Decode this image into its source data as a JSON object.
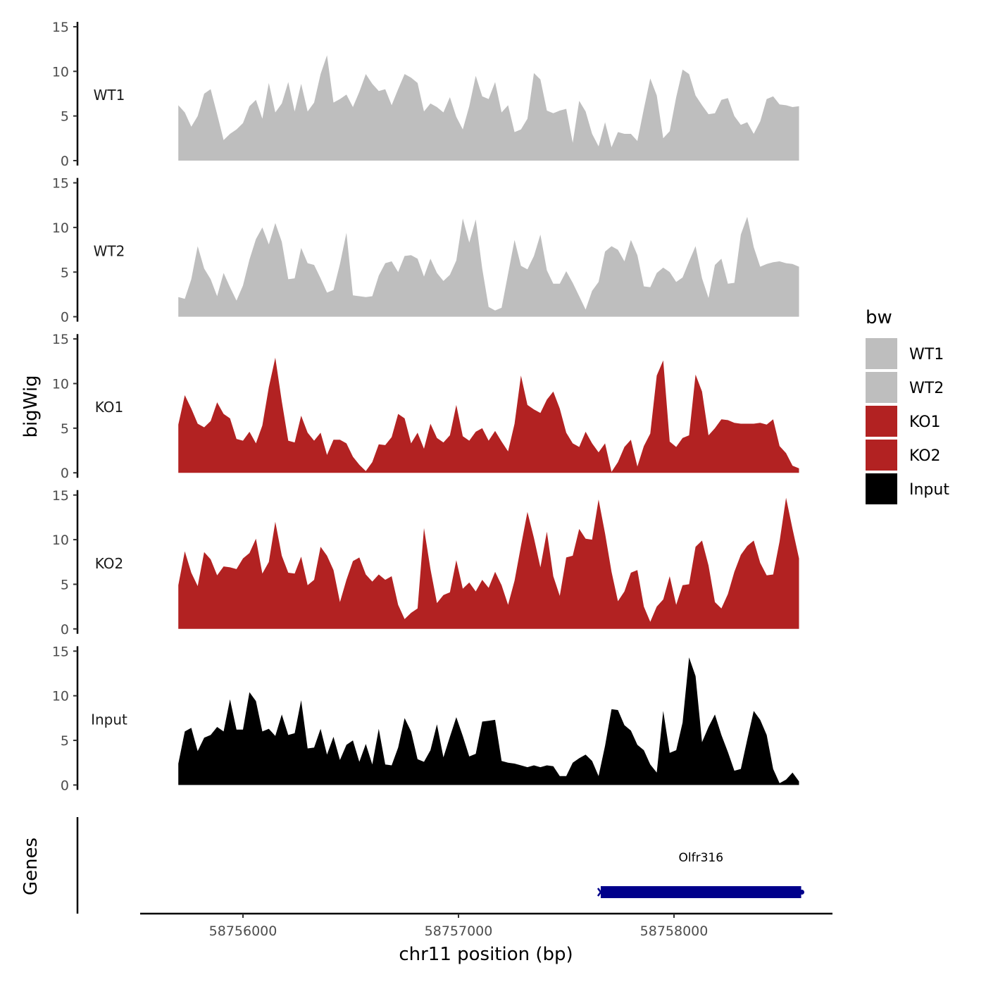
{
  "chart_data": {
    "type": "area",
    "y_axis_title": "bigWig",
    "x_axis_title": "chr11 position (bp)",
    "x_ticks": [
      58756000,
      58757000,
      58758000
    ],
    "x_range": [
      58755700,
      58758580
    ],
    "y_ticks": [
      0,
      5,
      10,
      15
    ],
    "ylim": [
      0,
      15
    ],
    "legend": {
      "title": "bw",
      "entries": [
        {
          "label": "WT1",
          "color": "#bebebe"
        },
        {
          "label": "WT2",
          "color": "#bebebe"
        },
        {
          "label": "KO1",
          "color": "#b22222"
        },
        {
          "label": "KO2",
          "color": "#b22222"
        },
        {
          "label": "Input",
          "color": "#000000"
        }
      ]
    },
    "tracks": [
      {
        "name": "WT1",
        "color": "#bebebe",
        "x": [
          58755700,
          58755730,
          58755760,
          58755790,
          58755820,
          58755850,
          58755880,
          58755910,
          58755940,
          58755970,
          58756000,
          58756030,
          58756060,
          58756090,
          58756120,
          58756150,
          58756180,
          58756210,
          58756240,
          58756270,
          58756300,
          58756330,
          58756360,
          58756390,
          58756420,
          58756450,
          58756480,
          58756510,
          58756540,
          58756570,
          58756600,
          58756630,
          58756660,
          58756690,
          58756720,
          58756750,
          58756780,
          58756810,
          58756840,
          58756870,
          58756900,
          58756930,
          58756960,
          58756990,
          58757020,
          58757050,
          58757080,
          58757110,
          58757140,
          58757170,
          58757200,
          58757230,
          58757260,
          58757290,
          58757320,
          58757350,
          58757380,
          58757410,
          58757440,
          58757470,
          58757500,
          58757530,
          58757560,
          58757590,
          58757620,
          58757650,
          58757680,
          58757710,
          58757740,
          58757770,
          58757800,
          58757830,
          58757860,
          58757890,
          58757920,
          58757950,
          58757980,
          58758010,
          58758040,
          58758070,
          58758100,
          58758130,
          58758160,
          58758190,
          58758220,
          58758250,
          58758280,
          58758310,
          58758340,
          58758370,
          58758400,
          58758430,
          58758460,
          58758490,
          58758520,
          58758550,
          58758580
        ],
        "values": [
          6.2,
          5.4,
          3.8,
          5.0,
          7.5,
          8.0,
          5.2,
          2.3,
          3.0,
          3.5,
          4.2,
          6.1,
          6.8,
          4.7,
          8.7,
          5.4,
          6.4,
          8.8,
          5.5,
          8.6,
          5.5,
          6.5,
          9.7,
          11.8,
          6.5,
          6.9,
          7.4,
          6.0,
          7.7,
          9.7,
          8.6,
          7.8,
          8.0,
          6.2,
          8.0,
          9.7,
          9.3,
          8.7,
          5.5,
          6.4,
          6.0,
          5.4,
          7.1,
          4.9,
          3.5,
          6.1,
          9.5,
          7.2,
          6.9,
          8.8,
          5.4,
          6.2,
          3.2,
          3.5,
          4.7,
          9.8,
          9.1,
          5.6,
          5.3,
          5.6,
          5.8,
          2.0,
          6.7,
          5.5,
          3.0,
          1.6,
          4.3,
          1.5,
          3.2,
          3.0,
          3.0,
          2.2,
          5.8,
          9.2,
          7.3,
          2.5,
          3.3,
          7.1,
          10.2,
          9.7,
          7.3,
          6.2,
          5.2,
          5.3,
          6.8,
          7.0,
          5.0,
          4.0,
          4.3,
          3.0,
          4.4,
          6.9,
          7.2,
          6.3,
          6.2,
          6.0,
          6.1
        ]
      },
      {
        "name": "WT2",
        "color": "#bebebe",
        "x": [
          58755700,
          58755730,
          58755760,
          58755790,
          58755820,
          58755850,
          58755880,
          58755910,
          58755940,
          58755970,
          58756000,
          58756030,
          58756060,
          58756090,
          58756120,
          58756150,
          58756180,
          58756210,
          58756240,
          58756270,
          58756300,
          58756330,
          58756360,
          58756390,
          58756420,
          58756450,
          58756480,
          58756510,
          58756540,
          58756570,
          58756600,
          58756630,
          58756660,
          58756690,
          58756720,
          58756750,
          58756780,
          58756810,
          58756840,
          58756870,
          58756900,
          58756930,
          58756960,
          58756990,
          58757020,
          58757050,
          58757080,
          58757110,
          58757140,
          58757170,
          58757200,
          58757230,
          58757260,
          58757290,
          58757320,
          58757350,
          58757380,
          58757410,
          58757440,
          58757470,
          58757500,
          58757530,
          58757560,
          58757590,
          58757620,
          58757650,
          58757680,
          58757710,
          58757740,
          58757770,
          58757800,
          58757830,
          58757860,
          58757890,
          58757920,
          58757950,
          58757980,
          58758010,
          58758040,
          58758070,
          58758100,
          58758130,
          58758160,
          58758190,
          58758220,
          58758250,
          58758280,
          58758310,
          58758340,
          58758370,
          58758400,
          58758430,
          58758460,
          58758490,
          58758520,
          58758550,
          58758580
        ],
        "values": [
          2.2,
          2.0,
          4.2,
          7.9,
          5.4,
          4.2,
          2.3,
          4.9,
          3.3,
          1.8,
          3.5,
          6.4,
          8.7,
          10.0,
          8.1,
          10.5,
          8.4,
          4.2,
          4.3,
          7.7,
          6.0,
          5.8,
          4.3,
          2.7,
          3.0,
          5.9,
          9.4,
          2.4,
          2.3,
          2.2,
          2.3,
          4.6,
          6.0,
          6.2,
          5.0,
          6.8,
          6.9,
          6.5,
          4.5,
          6.5,
          4.9,
          4.0,
          4.7,
          6.3,
          11.0,
          8.3,
          10.9,
          5.4,
          1.1,
          0.7,
          1.0,
          4.8,
          8.6,
          5.7,
          5.3,
          6.8,
          9.2,
          5.2,
          3.7,
          3.7,
          5.1,
          3.8,
          2.3,
          0.8,
          2.9,
          3.9,
          7.3,
          7.9,
          7.5,
          6.2,
          8.6,
          6.9,
          3.4,
          3.3,
          4.9,
          5.5,
          5.0,
          3.9,
          4.4,
          6.2,
          7.9,
          4.3,
          2.1,
          5.8,
          6.5,
          3.7,
          3.8,
          9.2,
          11.2,
          7.8,
          5.6,
          5.9,
          6.1,
          6.2,
          6.0,
          5.9,
          5.6
        ]
      },
      {
        "name": "KO1",
        "color": "#b22222",
        "x": [
          58755700,
          58755730,
          58755760,
          58755790,
          58755820,
          58755850,
          58755880,
          58755910,
          58755940,
          58755970,
          58756000,
          58756030,
          58756060,
          58756090,
          58756120,
          58756150,
          58756180,
          58756210,
          58756240,
          58756270,
          58756300,
          58756330,
          58756360,
          58756390,
          58756420,
          58756450,
          58756480,
          58756510,
          58756540,
          58756570,
          58756600,
          58756630,
          58756660,
          58756690,
          58756720,
          58756750,
          58756780,
          58756810,
          58756840,
          58756870,
          58756900,
          58756930,
          58756960,
          58756990,
          58757020,
          58757050,
          58757080,
          58757110,
          58757140,
          58757170,
          58757200,
          58757230,
          58757260,
          58757290,
          58757320,
          58757350,
          58757380,
          58757410,
          58757440,
          58757470,
          58757500,
          58757530,
          58757560,
          58757590,
          58757620,
          58757650,
          58757680,
          58757710,
          58757740,
          58757770,
          58757800,
          58757830,
          58757860,
          58757890,
          58757920,
          58757950,
          58757980,
          58758010,
          58758040,
          58758070,
          58758100,
          58758130,
          58758160,
          58758190,
          58758220,
          58758250,
          58758280,
          58758310,
          58758340,
          58758370,
          58758400,
          58758430,
          58758460,
          58758490,
          58758520,
          58758550,
          58758580
        ],
        "values": [
          5.4,
          8.7,
          7.2,
          5.5,
          5.1,
          5.8,
          7.9,
          6.6,
          6.1,
          3.8,
          3.6,
          4.6,
          3.3,
          5.3,
          9.6,
          12.9,
          8.0,
          3.6,
          3.4,
          6.4,
          4.5,
          3.6,
          4.5,
          2.0,
          3.7,
          3.7,
          3.3,
          1.8,
          0.9,
          0.2,
          1.2,
          3.2,
          3.1,
          4.0,
          6.6,
          6.1,
          3.3,
          4.5,
          2.7,
          5.5,
          3.9,
          3.4,
          4.2,
          7.6,
          4.1,
          3.6,
          4.6,
          5.0,
          3.6,
          4.7,
          3.5,
          2.4,
          5.5,
          10.9,
          7.6,
          7.1,
          6.7,
          8.2,
          9.1,
          7.2,
          4.5,
          3.3,
          2.9,
          4.6,
          3.3,
          2.3,
          3.3,
          0.1,
          1.2,
          2.9,
          3.7,
          0.7,
          3.0,
          4.4,
          10.9,
          12.6,
          3.5,
          2.9,
          3.9,
          4.2,
          11.0,
          9.1,
          4.2,
          5.0,
          6.0,
          5.9,
          5.6,
          5.5,
          5.5,
          5.5,
          5.6,
          5.4,
          6.0,
          3.0,
          2.2,
          0.8,
          0.5
        ]
      },
      {
        "name": "KO2",
        "color": "#b22222",
        "x": [
          58755700,
          58755730,
          58755760,
          58755790,
          58755820,
          58755850,
          58755880,
          58755910,
          58755940,
          58755970,
          58756000,
          58756030,
          58756060,
          58756090,
          58756120,
          58756150,
          58756180,
          58756210,
          58756240,
          58756270,
          58756300,
          58756330,
          58756360,
          58756390,
          58756420,
          58756450,
          58756480,
          58756510,
          58756540,
          58756570,
          58756600,
          58756630,
          58756660,
          58756690,
          58756720,
          58756750,
          58756780,
          58756810,
          58756840,
          58756870,
          58756900,
          58756930,
          58756960,
          58756990,
          58757020,
          58757050,
          58757080,
          58757110,
          58757140,
          58757170,
          58757200,
          58757230,
          58757260,
          58757290,
          58757320,
          58757350,
          58757380,
          58757410,
          58757440,
          58757470,
          58757500,
          58757530,
          58757560,
          58757590,
          58757620,
          58757650,
          58757680,
          58757710,
          58757740,
          58757770,
          58757800,
          58757830,
          58757860,
          58757890,
          58757920,
          58757950,
          58757980,
          58758010,
          58758040,
          58758070,
          58758100,
          58758130,
          58758160,
          58758190,
          58758220,
          58758250,
          58758280,
          58758310,
          58758340,
          58758370,
          58758400,
          58758430,
          58758460,
          58758490,
          58758520,
          58758550,
          58758580
        ],
        "values": [
          4.9,
          8.7,
          6.3,
          4.8,
          8.6,
          7.8,
          6.0,
          7.0,
          6.9,
          6.7,
          7.9,
          8.5,
          10.1,
          6.2,
          7.5,
          12.0,
          8.2,
          6.3,
          6.2,
          8.1,
          4.9,
          5.5,
          9.2,
          8.2,
          6.6,
          3.0,
          5.5,
          7.6,
          8.0,
          6.1,
          5.3,
          6.1,
          5.5,
          5.9,
          2.7,
          1.1,
          1.8,
          2.3,
          11.3,
          6.7,
          2.9,
          3.8,
          4.1,
          7.7,
          4.5,
          5.2,
          4.2,
          5.5,
          4.6,
          6.4,
          4.9,
          2.7,
          5.4,
          9.3,
          13.1,
          10.2,
          6.9,
          10.9,
          5.9,
          3.7,
          8.0,
          8.2,
          11.2,
          10.1,
          10.0,
          14.5,
          10.7,
          6.4,
          3.1,
          4.2,
          6.3,
          6.6,
          2.5,
          0.8,
          2.5,
          3.3,
          5.9,
          2.7,
          4.9,
          5.0,
          9.2,
          9.9,
          7.1,
          3.0,
          2.3,
          3.9,
          6.4,
          8.3,
          9.3,
          9.9,
          7.4,
          6.0,
          6.1,
          9.8,
          14.7,
          11.2,
          7.9
        ]
      },
      {
        "name": "Input",
        "color": "#000000",
        "x": [
          58755700,
          58755730,
          58755760,
          58755790,
          58755820,
          58755850,
          58755880,
          58755910,
          58755940,
          58755970,
          58756000,
          58756030,
          58756060,
          58756090,
          58756120,
          58756150,
          58756180,
          58756210,
          58756240,
          58756270,
          58756300,
          58756330,
          58756360,
          58756390,
          58756420,
          58756450,
          58756480,
          58756510,
          58756540,
          58756570,
          58756600,
          58756630,
          58756660,
          58756690,
          58756720,
          58756750,
          58756780,
          58756810,
          58756840,
          58756870,
          58756900,
          58756930,
          58756960,
          58756990,
          58757020,
          58757050,
          58757080,
          58757110,
          58757140,
          58757170,
          58757200,
          58757230,
          58757260,
          58757290,
          58757320,
          58757350,
          58757380,
          58757410,
          58757440,
          58757470,
          58757500,
          58757530,
          58757560,
          58757590,
          58757620,
          58757650,
          58757680,
          58757710,
          58757740,
          58757770,
          58757800,
          58757830,
          58757860,
          58757890,
          58757920,
          58757950,
          58757980,
          58758010,
          58758040,
          58758070,
          58758100,
          58758130,
          58758160,
          58758190,
          58758220,
          58758250,
          58758280,
          58758310,
          58758340,
          58758370,
          58758400,
          58758430,
          58758460,
          58758490,
          58758520,
          58758550,
          58758580
        ],
        "values": [
          2.4,
          6.0,
          6.4,
          3.8,
          5.3,
          5.6,
          6.5,
          6.0,
          9.6,
          6.2,
          6.2,
          10.4,
          9.4,
          6.0,
          6.3,
          5.5,
          7.9,
          5.6,
          5.8,
          9.5,
          4.1,
          4.2,
          6.3,
          3.4,
          5.4,
          2.8,
          4.5,
          5.0,
          2.6,
          4.6,
          2.3,
          6.3,
          2.3,
          2.2,
          4.2,
          7.5,
          6.0,
          2.9,
          2.6,
          3.9,
          6.8,
          3.1,
          5.4,
          7.6,
          5.5,
          3.2,
          3.5,
          7.1,
          7.2,
          7.3,
          2.7,
          2.5,
          2.4,
          2.2,
          2.0,
          2.2,
          2.0,
          2.2,
          2.1,
          1.0,
          1.0,
          2.5,
          3.0,
          3.4,
          2.7,
          1.0,
          4.4,
          8.5,
          8.4,
          6.7,
          6.1,
          4.5,
          3.9,
          2.3,
          1.4,
          8.3,
          3.6,
          3.9,
          7.0,
          14.3,
          12.2,
          4.8,
          6.5,
          7.9,
          5.6,
          3.7,
          1.6,
          1.8,
          5.1,
          8.3,
          7.3,
          5.6,
          1.8,
          0.2,
          0.6,
          1.4,
          0.4
        ]
      }
    ],
    "genes": [
      {
        "name": "Olfr316",
        "start": 58757660,
        "end": 58758590,
        "strand": "-",
        "color": "#00008b"
      }
    ]
  }
}
